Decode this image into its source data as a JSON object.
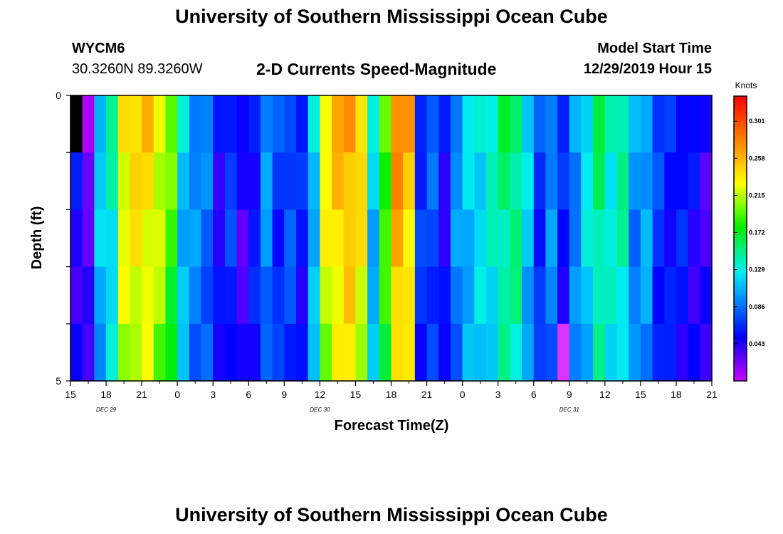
{
  "header": {
    "title": "University of Southern Mississippi Ocean Cube",
    "station_id": "WYCM6",
    "coords": "30.3260N 89.3260W",
    "subtitle": "2-D Currents Speed-Magnitude",
    "model_start_label": "Model Start Time",
    "model_start_value": "12/29/2019 Hour 15"
  },
  "footer": {
    "title": "University of Southern Mississippi Ocean Cube"
  },
  "chart_data": {
    "type": "heatmap",
    "title": "2-D Currents Speed-Magnitude",
    "xlabel": "Forecast Time(Z)",
    "ylabel": "Depth (ft)",
    "x_ticks": [
      "15",
      "18",
      "21",
      "0",
      "3",
      "6",
      "9",
      "12",
      "15",
      "18",
      "21",
      "0",
      "3",
      "6",
      "9",
      "12",
      "15",
      "18",
      "21"
    ],
    "date_labels": [
      {
        "text": "DEC 29",
        "at_tick": 1
      },
      {
        "text": "DEC 30",
        "at_tick": 7
      },
      {
        "text": "DEC 31",
        "at_tick": 14
      }
    ],
    "y_ticks": [
      "0",
      "5"
    ],
    "ylim": [
      0,
      5
    ],
    "hours": 54,
    "depth_levels": 5,
    "colorbar": {
      "unit": "Knots",
      "ticks": [
        "0.301",
        "0.258",
        "0.215",
        "0.172",
        "0.129",
        "0.086",
        "0.043"
      ],
      "tick_values": [
        0.301,
        0.258,
        0.215,
        0.172,
        0.129,
        0.086,
        0.043
      ],
      "min": 0.0,
      "max": 0.33,
      "colors": [
        "#cc00ff",
        "#6600ff",
        "#0000ff",
        "#0050ff",
        "#00a0ff",
        "#00f0f0",
        "#00f080",
        "#00ee00",
        "#80ff00",
        "#ffff00",
        "#ffc000",
        "#ff8000",
        "#ff4000",
        "#ff0000"
      ]
    },
    "profile": [
      0.05,
      0.035,
      0.12,
      0.14,
      0.24,
      0.25,
      0.25,
      0.23,
      0.2,
      0.12,
      0.1,
      0.09,
      0.05,
      0.07,
      0.04,
      0.06,
      0.1,
      0.07,
      0.08,
      0.06,
      0.12,
      0.24,
      0.26,
      0.27,
      0.25,
      0.12,
      0.2,
      0.28,
      0.26,
      0.07,
      0.08,
      0.05,
      0.1,
      0.12,
      0.13,
      0.14,
      0.16,
      0.16,
      0.12,
      0.07,
      0.1,
      0.06,
      0.1,
      0.13,
      0.16,
      0.14,
      0.15,
      0.1,
      0.11,
      0.07,
      0.06,
      0.06,
      0.05,
      0.04
    ],
    "depth_factor": [
      1.0,
      0.96,
      0.93,
      0.9,
      0.87
    ],
    "highlights": [
      {
        "hour": 0,
        "level": 0,
        "color": "#000000"
      },
      {
        "hour": 1,
        "level": 0,
        "color": "#aa00ff"
      },
      {
        "hour": 41,
        "level": 4,
        "color": "#dd33ff"
      }
    ]
  }
}
